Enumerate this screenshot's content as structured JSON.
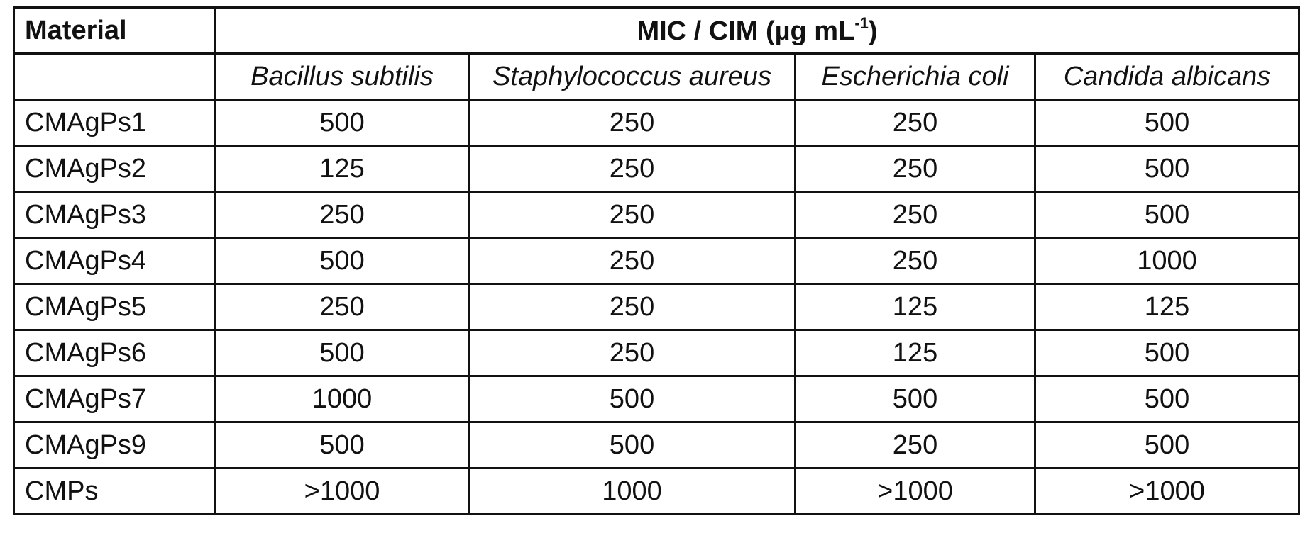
{
  "header": {
    "material": "Material",
    "title": "MIC / CIM (µg mL",
    "title_sup": "-1",
    "title_end": ")",
    "species": [
      "Bacillus subtilis",
      "Staphylococcus aureus",
      "Escherichia coli",
      "Candida albicans"
    ]
  },
  "table": {
    "rows": [
      [
        "CMAgPs1",
        500,
        250,
        250,
        500
      ],
      [
        "CMAgPs2",
        125,
        250,
        250,
        500
      ],
      [
        "CMAgPs3",
        250,
        250,
        250,
        500
      ],
      [
        "CMAgPs4",
        500,
        250,
        250,
        1000
      ],
      [
        "CMAgPs5",
        250,
        250,
        125,
        125
      ],
      [
        "CMAgPs6",
        500,
        250,
        125,
        500
      ],
      [
        "CMAgPs7",
        1000,
        500,
        500,
        500
      ],
      [
        "CMAgPs9",
        500,
        500,
        250,
        500
      ],
      [
        "CMPs",
        ">1000",
        1000,
        ">1000",
        ">1000"
      ]
    ]
  }
}
